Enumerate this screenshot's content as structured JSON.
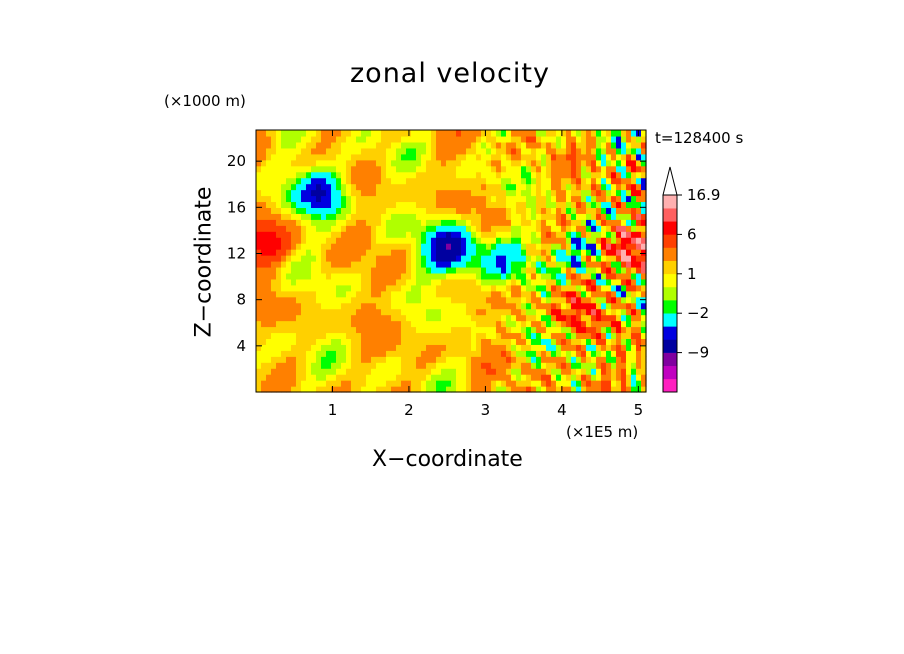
{
  "chart_data": {
    "type": "heatmap",
    "title": "zonal velocity",
    "xlabel": "X−coordinate",
    "ylabel": "Z−coordinate",
    "x_unit_label": "(×1E5 m)",
    "y_unit_label": "(×1000 m)",
    "timestamp": "t=128400 s",
    "xlim": [
      0,
      5.1
    ],
    "ylim": [
      0,
      22.7
    ],
    "x_ticks": [
      1,
      2,
      3,
      4,
      5
    ],
    "y_ticks": [
      4,
      8,
      12,
      16,
      20
    ],
    "grid": false,
    "legend": "right",
    "colorbar": {
      "levels": [
        -15,
        -12,
        -9,
        -6,
        -4,
        -2,
        -1,
        0,
        1,
        2,
        4,
        6,
        9,
        12,
        16.9
      ],
      "labels": [
        "16.9",
        "6",
        "1",
        "−2",
        "−9"
      ],
      "colors": [
        "#ff20c0",
        "#c000c0",
        "#8000a0",
        "#0000a0",
        "#0000e0",
        "#00ffff",
        "#00ff00",
        "#b0ff00",
        "#ffff00",
        "#ffd000",
        "#ff8000",
        "#ff4000",
        "#ff0000",
        "#ff6060",
        "#ffb0b0"
      ],
      "extend": "max"
    },
    "features": [
      {
        "x": 0.85,
        "z": 17.4,
        "value": -7
      },
      {
        "x": 2.55,
        "z": 12.4,
        "value": -9
      },
      {
        "x": 0.1,
        "z": 13.0,
        "value": 5
      },
      {
        "x": 4.3,
        "z": 12.5,
        "value": -5
      },
      {
        "x": 4.95,
        "z": 12.4,
        "value": 9
      },
      {
        "x": 3.2,
        "z": 11.0,
        "value": -4
      },
      {
        "x": 0.4,
        "z": 1.2,
        "value": -1
      },
      {
        "x": 4.2,
        "z": 7.0,
        "value": 3
      }
    ]
  }
}
